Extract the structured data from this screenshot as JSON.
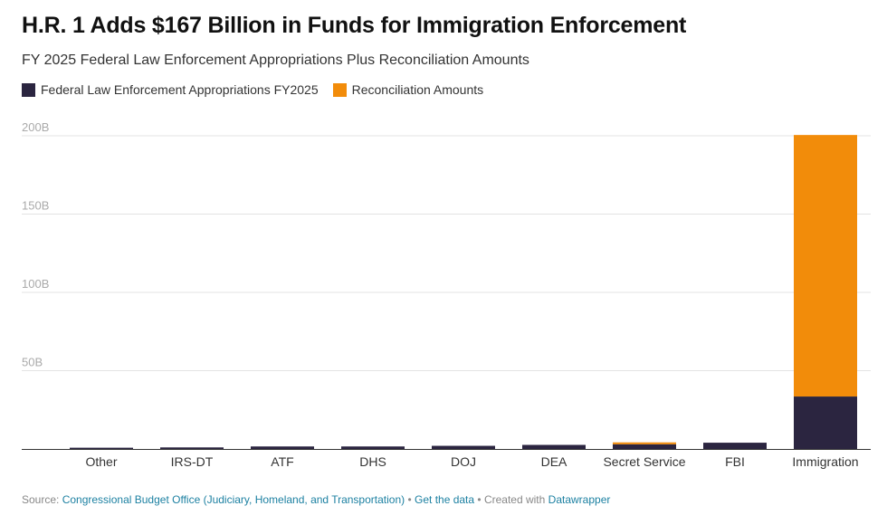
{
  "title": "H.R. 1 Adds $167 Billion in Funds for Immigration Enforcement",
  "subtitle": "FY 2025 Federal Law Enforcement Appropriations Plus Reconciliation Amounts",
  "footer": {
    "source_label": "Source:",
    "source_link": "Congressional Budget Office (Judiciary, Homeland, and Transportation)",
    "get_data": "Get the data",
    "created_with": "Created with",
    "datawrapper": "Datawrapper",
    "separator": "•"
  },
  "chart_data": {
    "type": "bar",
    "stacked": true,
    "title": "H.R. 1 Adds $167 Billion in Funds for Immigration Enforcement",
    "subtitle": "FY 2025 Federal Law Enforcement Appropriations Plus Reconciliation Amounts",
    "xlabel": "",
    "ylabel": "",
    "ylim": [
      0,
      200
    ],
    "yticks": [
      50,
      100,
      150,
      200
    ],
    "ytick_labels": [
      "50B",
      "100B",
      "150B",
      "200B"
    ],
    "grid": true,
    "legend_position": "top-left",
    "categories": [
      "Other",
      "IRS-DT",
      "ATF",
      "DHS",
      "DOJ",
      "DEA",
      "Secret Service",
      "FBI",
      "Immigration"
    ],
    "series": [
      {
        "name": "Federal Law Enforcement Appropriations FY2025",
        "color": "#2b2540",
        "values": [
          0.8,
          1.0,
          1.6,
          1.6,
          2.0,
          2.6,
          3.0,
          4.0,
          33.5
        ]
      },
      {
        "name": "Reconciliation Amounts",
        "color": "#f28c0a",
        "values": [
          0,
          0,
          0,
          0,
          0,
          0,
          1.2,
          0,
          167
        ]
      }
    ]
  }
}
